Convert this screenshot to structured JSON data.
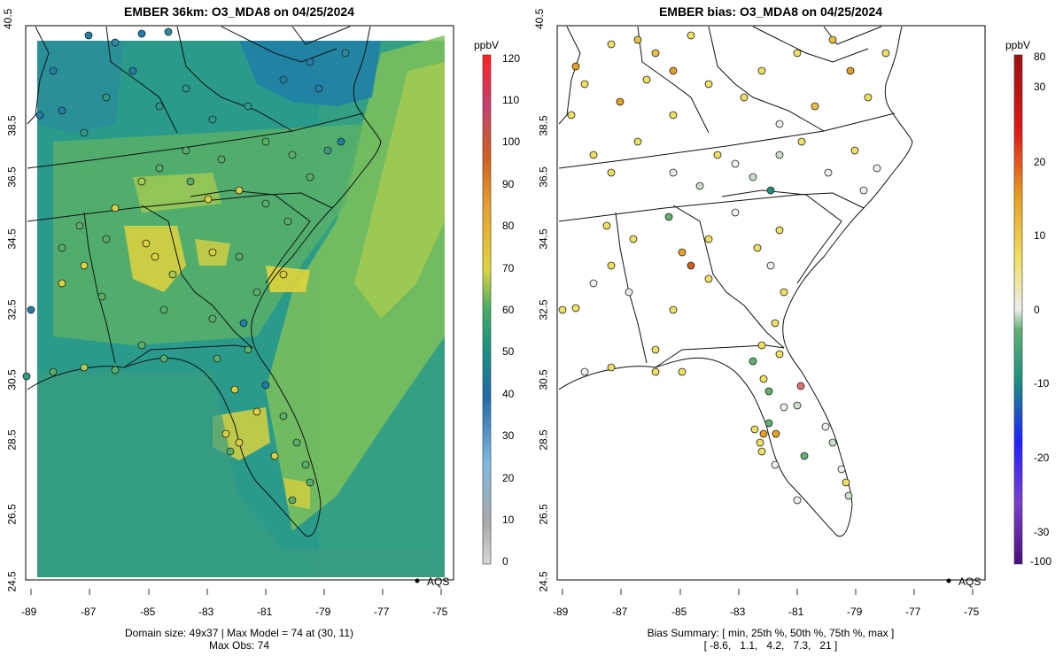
{
  "left_panel": {
    "title": "EMBER 36km: O3_MDA8 on 04/25/2024",
    "colorbar_unit": "ppbV",
    "colorbar_ticks": [
      "120",
      "110",
      "100",
      "90",
      "80",
      "70",
      "60",
      "50",
      "40",
      "30",
      "20",
      "10",
      "0"
    ],
    "footer_line1": "Domain size: 49x37 | Max Model = 74 at (30, 11)",
    "footer_line2": "Max Obs: 74",
    "legend_label": "AQS",
    "gradient_colors": [
      "#d8d8d8",
      "#a9a9a9",
      "#7fb8e0",
      "#3b8fc9",
      "#1f6aa8",
      "#1a9080",
      "#44ac64",
      "#8cc65a",
      "#e0d43c",
      "#e8a030",
      "#d06020",
      "#c84070",
      "#d81818",
      "#ff2020"
    ]
  },
  "right_panel": {
    "title": "EMBER bias: O3_MDA8 on 04/25/2024",
    "colorbar_unit": "ppbV",
    "colorbar_ticks": [
      "80",
      "30",
      "20",
      "10",
      "0",
      "-10",
      "-20",
      "-30",
      "-100"
    ],
    "footer_line1": "Bias Summary: [ min, 25th %, 50th %, 75th %, max ]",
    "footer_line2": "[ -8.6,   1.1,   4.2,   7.3,   21 ]",
    "legend_label": "AQS",
    "gradient_colors": [
      "#4b0f80",
      "#7b3fd0",
      "#2020ff",
      "#1a6ad0",
      "#1a9080",
      "#60b070",
      "#c8e0c8",
      "#eeeeee",
      "#f0e060",
      "#e8a020",
      "#d06018",
      "#e01818",
      "#a01010"
    ]
  },
  "axes": {
    "lat_ticks": [
      "40.5",
      "38.5",
      "36.5",
      "34.5",
      "32.5",
      "30.5",
      "28.5",
      "26.5",
      "24.5"
    ],
    "lon_ticks": [
      "-89",
      "-87",
      "-85",
      "-83",
      "-81",
      "-79",
      "-77",
      "-75"
    ]
  },
  "colors": {
    "ocean_base": "#2a9a8a",
    "hot_model": "#d8d040",
    "mid_model": "#50b070",
    "low_model": "#1f7fa8"
  }
}
